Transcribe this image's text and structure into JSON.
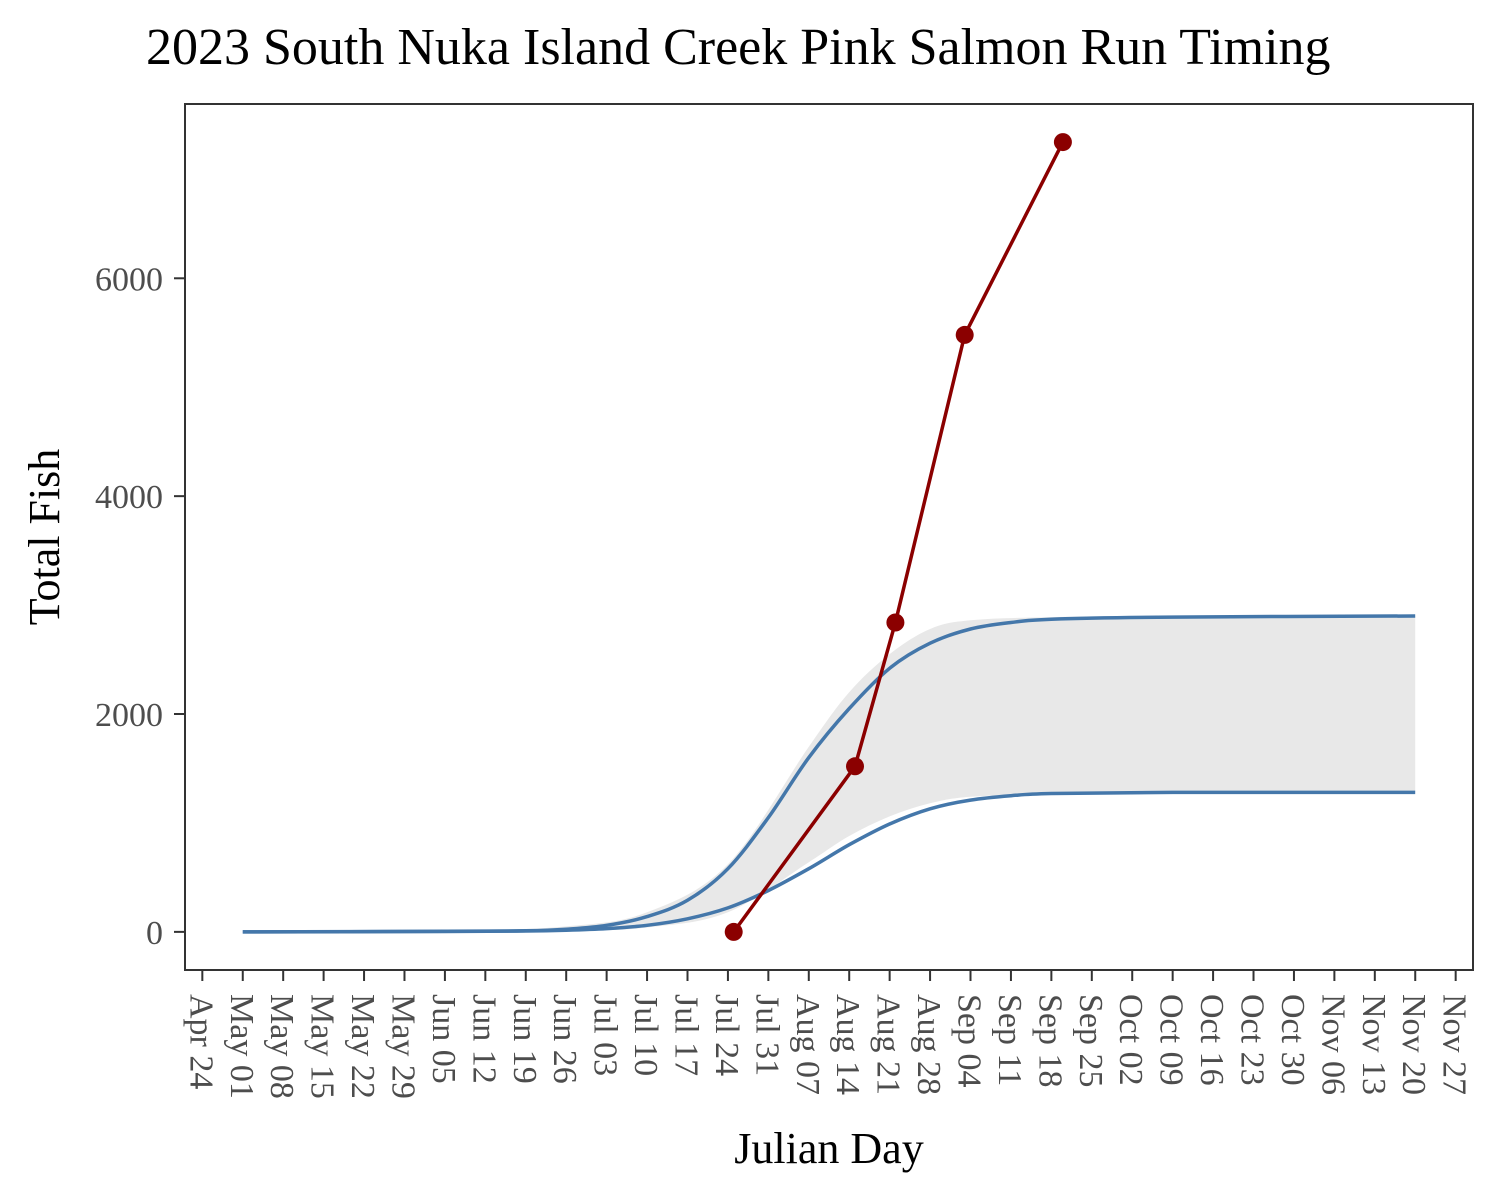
{
  "chart_data": {
    "type": "line",
    "title": "2023 South Nuka Island Creek Pink Salmon Run Timing",
    "xlabel": "Julian Day",
    "ylabel": "Total Fish",
    "xlim": [
      "Apr 21",
      "Nov 30"
    ],
    "ylim": [
      -350,
      7600
    ],
    "grid": false,
    "legend": "none",
    "y_ticks": [
      0,
      2000,
      4000,
      6000
    ],
    "x_ticks": [
      "Apr 24",
      "May 01",
      "May 08",
      "May 15",
      "May 22",
      "May 29",
      "Jun 05",
      "Jun 12",
      "Jun 19",
      "Jun 26",
      "Jul 03",
      "Jul 10",
      "Jul 17",
      "Jul 24",
      "Jul 31",
      "Aug 07",
      "Aug 14",
      "Aug 21",
      "Aug 28",
      "Sep 04",
      "Sep 11",
      "Sep 18",
      "Sep 25",
      "Oct 02",
      "Oct 09",
      "Oct 16",
      "Oct 23",
      "Oct 30",
      "Nov 06",
      "Nov 13",
      "Nov 20",
      "Nov 27"
    ],
    "band": {
      "x": [
        "May 01",
        "Jun 05",
        "Jun 26",
        "Jul 10",
        "Jul 24",
        "Aug 07",
        "Aug 14",
        "Aug 21",
        "Aug 28",
        "Sep 04",
        "Sep 18",
        "Oct 09",
        "Nov 20"
      ],
      "lower": [
        0,
        0,
        10,
        40,
        180,
        640,
        880,
        1060,
        1180,
        1240,
        1270,
        1280,
        1280
      ],
      "upper": [
        0,
        10,
        50,
        180,
        620,
        1700,
        2200,
        2550,
        2780,
        2860,
        2890,
        2900,
        2900
      ]
    },
    "series": [
      {
        "role": "curve-upper",
        "color": "#4477aa",
        "x": [
          "May 01",
          "Jun 05",
          "Jun 19",
          "Jun 26",
          "Jul 03",
          "Jul 10",
          "Jul 17",
          "Jul 24",
          "Jul 31",
          "Aug 07",
          "Aug 14",
          "Aug 21",
          "Aug 28",
          "Sep 04",
          "Sep 11",
          "Sep 18",
          "Oct 09",
          "Nov 20"
        ],
        "values": [
          0,
          5,
          10,
          25,
          60,
          140,
          290,
          580,
          1050,
          1600,
          2050,
          2420,
          2650,
          2780,
          2840,
          2870,
          2890,
          2900
        ]
      },
      {
        "role": "curve-lower",
        "color": "#4477aa",
        "x": [
          "May 01",
          "Jun 05",
          "Jun 19",
          "Jun 26",
          "Jul 03",
          "Jul 10",
          "Jul 17",
          "Jul 24",
          "Jul 31",
          "Aug 07",
          "Aug 14",
          "Aug 21",
          "Aug 28",
          "Sep 04",
          "Sep 11",
          "Sep 18",
          "Oct 09",
          "Nov 20"
        ],
        "values": [
          0,
          3,
          8,
          15,
          30,
          60,
          120,
          220,
          380,
          580,
          800,
          990,
          1130,
          1210,
          1250,
          1270,
          1280,
          1280
        ]
      },
      {
        "role": "observed",
        "color": "#8b0000",
        "x": [
          "Jul 25",
          "Aug 15",
          "Aug 22",
          "Sep 03",
          "Sep 20"
        ],
        "values": [
          0,
          1520,
          2840,
          5480,
          7250
        ]
      }
    ]
  }
}
